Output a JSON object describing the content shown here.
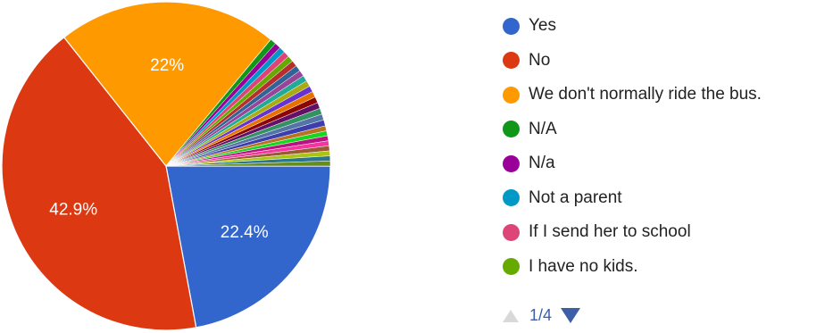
{
  "chart_data": {
    "type": "pie",
    "slices": [
      {
        "name": "Yes",
        "value": 22.4,
        "label": "22.4%",
        "color": "#3366cc"
      },
      {
        "name": "No",
        "value": 42.9,
        "label": "42.9%",
        "color": "#dc3912"
      },
      {
        "name": "We don't normally ride the bus.",
        "value": 22.0,
        "label": "22%",
        "color": "#ff9900"
      },
      {
        "name": "N/A",
        "value": 0.6,
        "color": "#109618"
      },
      {
        "name": "N/a",
        "value": 0.6,
        "color": "#990099"
      },
      {
        "name": "Not a parent",
        "value": 0.6,
        "color": "#0099c6"
      },
      {
        "name": "If I send her to school",
        "value": 0.6,
        "color": "#dd4477"
      },
      {
        "name": "I have no kids.",
        "value": 0.6,
        "color": "#66aa00"
      },
      {
        "name": "",
        "value": 0.6,
        "color": "#b82e2e"
      },
      {
        "name": "",
        "value": 0.6,
        "color": "#316395"
      },
      {
        "name": "",
        "value": 0.6,
        "color": "#994499"
      },
      {
        "name": "",
        "value": 0.6,
        "color": "#22aa99"
      },
      {
        "name": "",
        "value": 0.6,
        "color": "#aaaa11"
      },
      {
        "name": "",
        "value": 0.6,
        "color": "#6633cc"
      },
      {
        "name": "",
        "value": 0.6,
        "color": "#e67300"
      },
      {
        "name": "",
        "value": 0.6,
        "color": "#8b0707"
      },
      {
        "name": "",
        "value": 0.6,
        "color": "#651067"
      },
      {
        "name": "",
        "value": 0.6,
        "color": "#329262"
      },
      {
        "name": "",
        "value": 0.6,
        "color": "#5574a6"
      },
      {
        "name": "",
        "value": 0.6,
        "color": "#3b3eac"
      },
      {
        "name": "",
        "value": 0.5,
        "color": "#b77322"
      },
      {
        "name": "",
        "value": 0.5,
        "color": "#16d620"
      },
      {
        "name": "",
        "value": 0.5,
        "color": "#b91383"
      },
      {
        "name": "",
        "value": 0.5,
        "color": "#f4359e"
      },
      {
        "name": "",
        "value": 0.5,
        "color": "#9c5935"
      },
      {
        "name": "",
        "value": 0.5,
        "color": "#a9c413"
      },
      {
        "name": "",
        "value": 0.5,
        "color": "#2a778d"
      },
      {
        "name": "",
        "value": 0.5,
        "color": "#668d1c"
      }
    ],
    "legend_position": "right",
    "legend_visible": [
      {
        "label": "Yes",
        "color": "#3366cc"
      },
      {
        "label": "No",
        "color": "#dc3912"
      },
      {
        "label": "We don't normally ride the bus.",
        "color": "#ff9900"
      },
      {
        "label": "N/A",
        "color": "#109618"
      },
      {
        "label": "N/a",
        "color": "#990099"
      },
      {
        "label": "Not a parent",
        "color": "#0099c6"
      },
      {
        "label": "If I send her to school",
        "color": "#dd4477"
      },
      {
        "label": "I have no kids.",
        "color": "#66aa00"
      }
    ]
  },
  "pager": {
    "text": "1/4"
  }
}
